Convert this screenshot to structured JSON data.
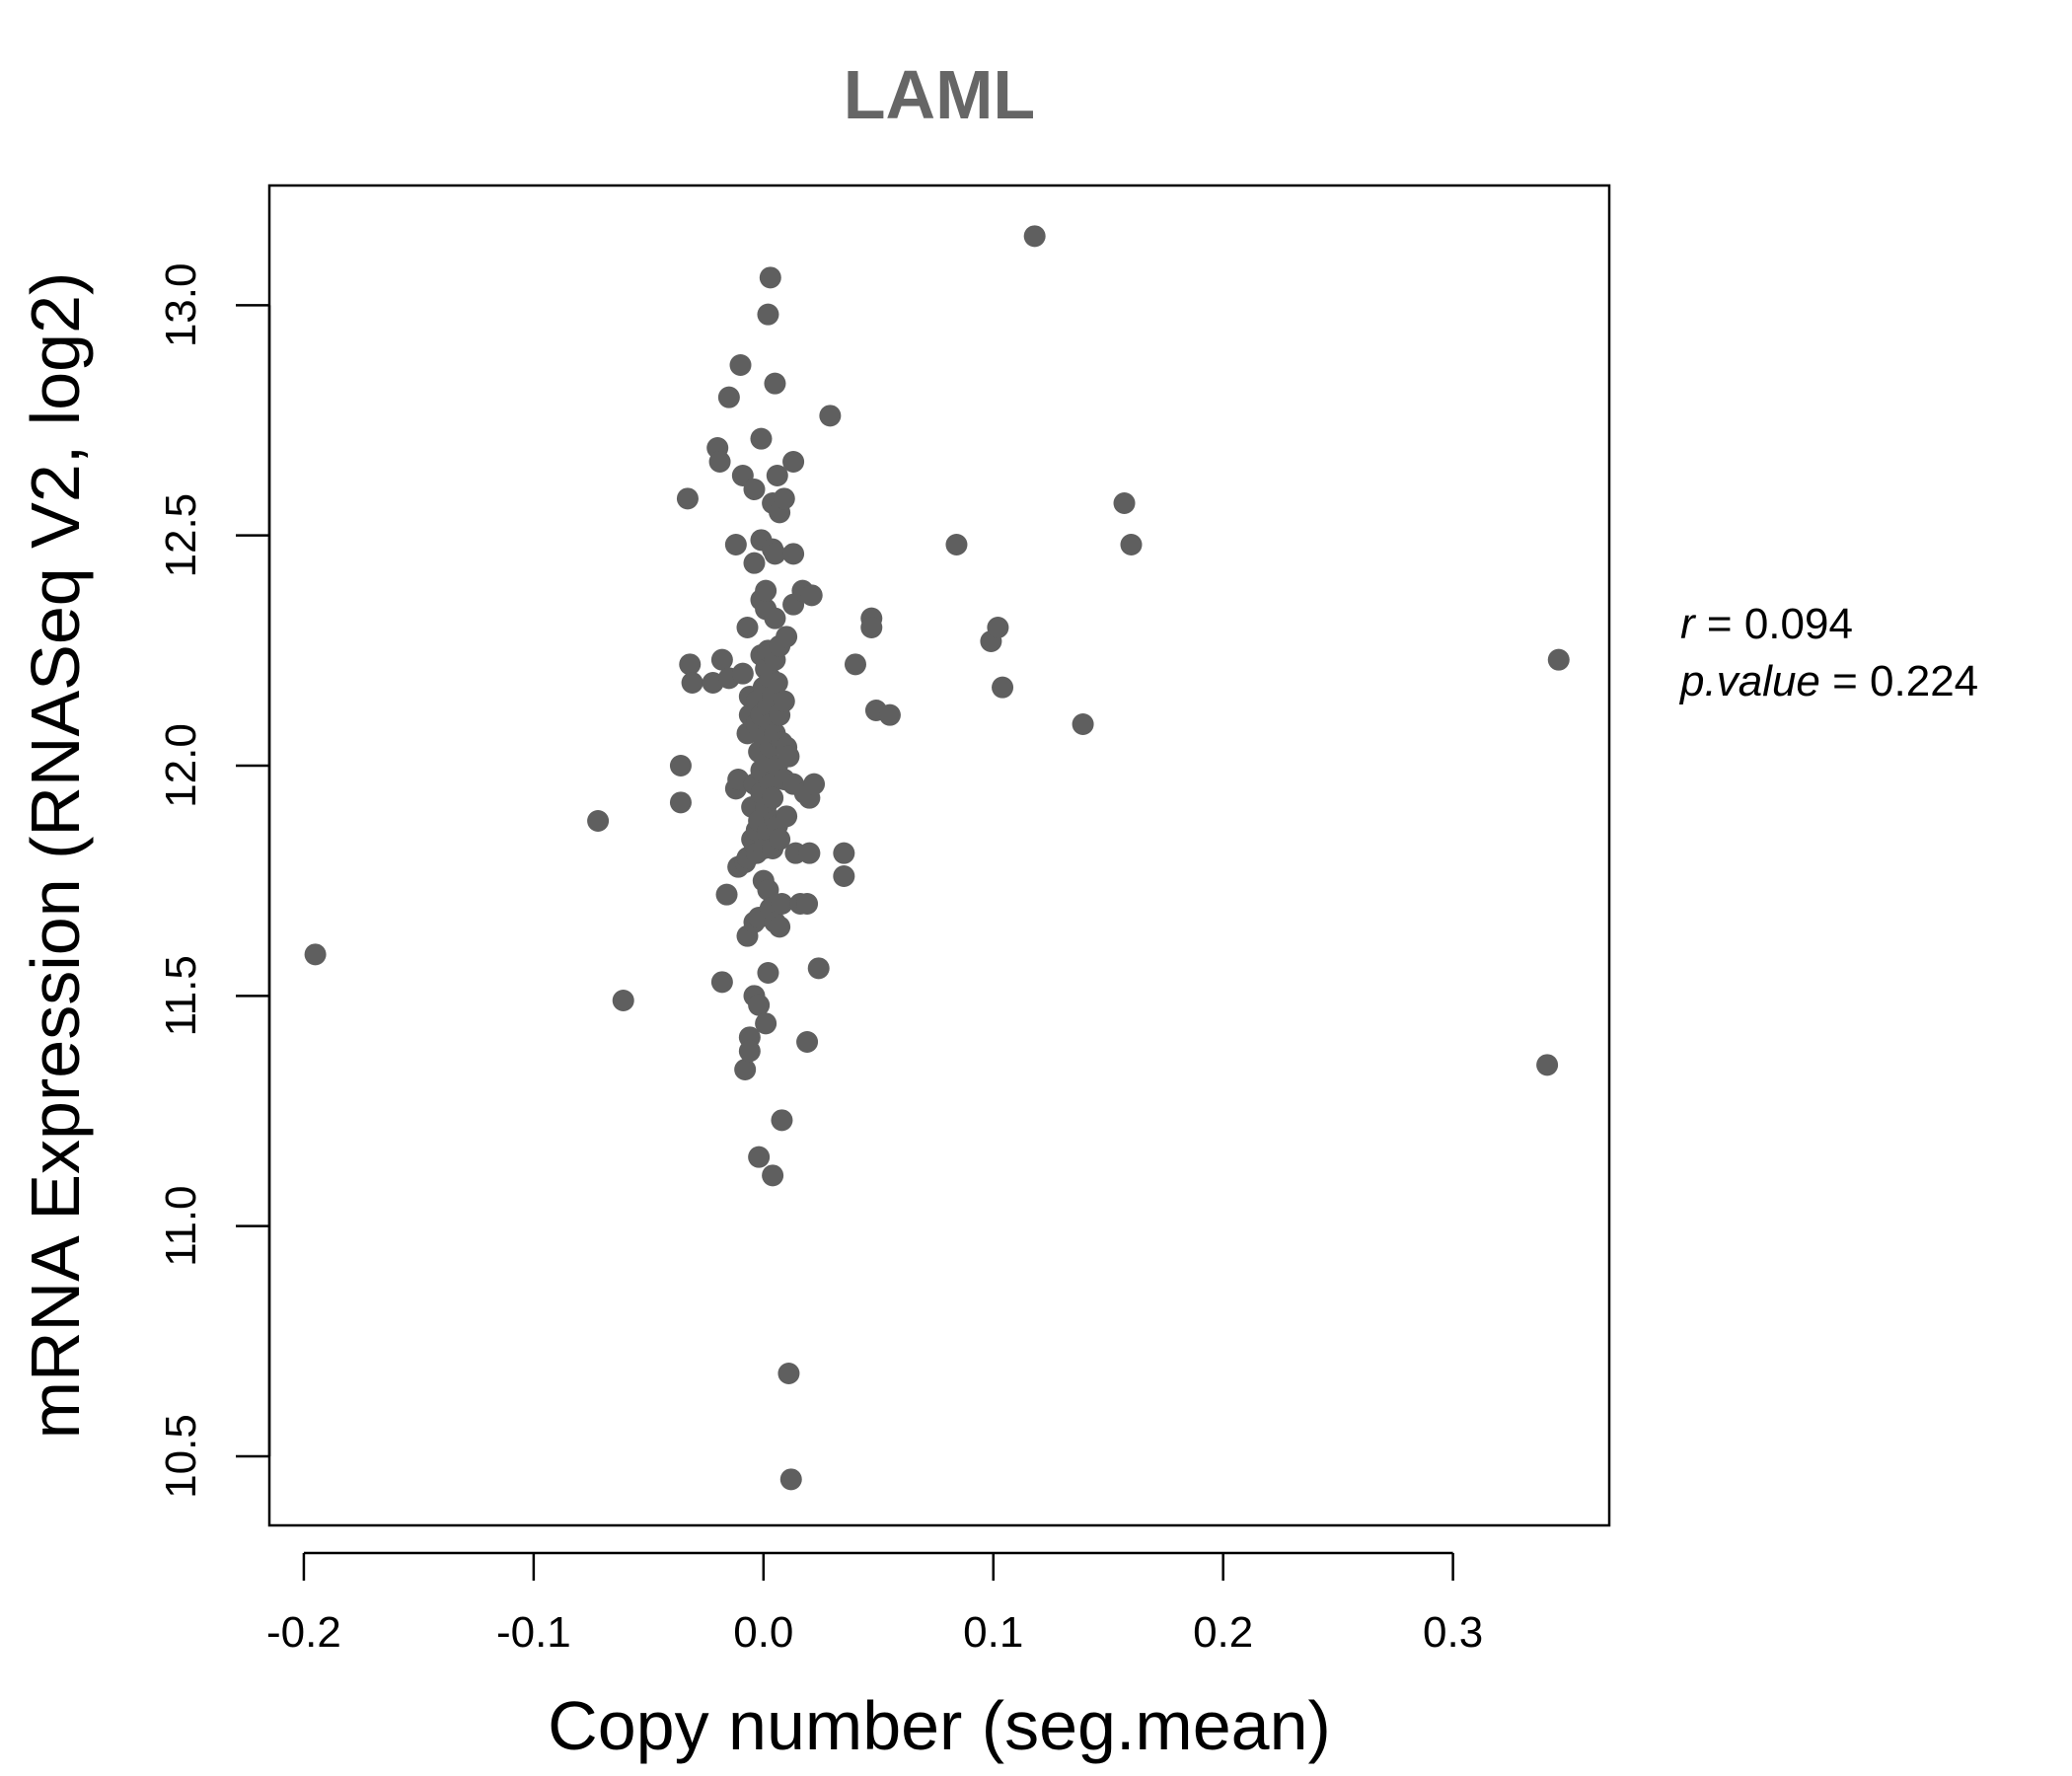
{
  "chart_data": {
    "type": "scatter",
    "title": "LAML",
    "xlabel": "Copy number (seg.mean)",
    "ylabel": "mRNA Expression (RNASeq V2, log2)",
    "xlim": [
      -0.215,
      0.368
    ],
    "ylim": [
      10.35,
      13.26
    ],
    "x_ticks": [
      -0.2,
      -0.1,
      0.0,
      0.1,
      0.2,
      0.3
    ],
    "x_tick_labels": [
      "-0.2",
      "-0.1",
      "0.0",
      "0.1",
      "0.2",
      "0.3"
    ],
    "y_ticks": [
      10.5,
      11.0,
      11.5,
      12.0,
      12.5,
      13.0
    ],
    "y_tick_labels": [
      "10.5",
      "11.0",
      "11.5",
      "12.0",
      "12.5",
      "13.0"
    ],
    "grid": false,
    "point_color": "#5f5f5f",
    "stats": {
      "r_label": "r",
      "r_value": "0.094",
      "p_label": "p.value",
      "p_value": "0.224"
    },
    "points": [
      [
        -0.195,
        11.59
      ],
      [
        -0.072,
        11.88
      ],
      [
        -0.061,
        11.49
      ],
      [
        -0.036,
        12.0
      ],
      [
        -0.036,
        11.92
      ],
      [
        -0.033,
        12.58
      ],
      [
        -0.032,
        12.22
      ],
      [
        -0.031,
        12.18
      ],
      [
        -0.022,
        12.18
      ],
      [
        -0.02,
        12.69
      ],
      [
        -0.019,
        12.66
      ],
      [
        -0.018,
        12.23
      ],
      [
        -0.018,
        11.53
      ],
      [
        -0.016,
        11.72
      ],
      [
        -0.015,
        12.19
      ],
      [
        -0.015,
        12.8
      ],
      [
        -0.012,
        11.95
      ],
      [
        -0.012,
        12.48
      ],
      [
        -0.011,
        11.97
      ],
      [
        -0.011,
        11.78
      ],
      [
        -0.01,
        12.87
      ],
      [
        -0.009,
        12.63
      ],
      [
        -0.009,
        12.2
      ],
      [
        -0.008,
        11.34
      ],
      [
        -0.008,
        11.79
      ],
      [
        -0.007,
        12.07
      ],
      [
        -0.007,
        12.3
      ],
      [
        -0.007,
        11.63
      ],
      [
        -0.007,
        11.8
      ],
      [
        -0.006,
        12.15
      ],
      [
        -0.006,
        12.11
      ],
      [
        -0.006,
        11.41
      ],
      [
        -0.006,
        11.38
      ],
      [
        -0.005,
        11.84
      ],
      [
        -0.005,
        11.91
      ],
      [
        -0.004,
        11.66
      ],
      [
        -0.004,
        11.83
      ],
      [
        -0.004,
        11.5
      ],
      [
        -0.004,
        11.96
      ],
      [
        -0.004,
        12.6
      ],
      [
        -0.004,
        12.44
      ],
      [
        -0.003,
        12.09
      ],
      [
        -0.003,
        11.86
      ],
      [
        -0.003,
        12.14
      ],
      [
        -0.003,
        11.81
      ],
      [
        -0.002,
        11.48
      ],
      [
        -0.002,
        11.15
      ],
      [
        -0.002,
        11.67
      ],
      [
        -0.002,
        12.03
      ],
      [
        -0.002,
        11.88
      ],
      [
        -0.001,
        12.71
      ],
      [
        -0.001,
        12.49
      ],
      [
        -0.001,
        12.36
      ],
      [
        -0.001,
        12.24
      ],
      [
        -0.001,
        12.11
      ],
      [
        -0.001,
        11.94
      ],
      [
        -0.001,
        11.99
      ],
      [
        0.0,
        11.82
      ],
      [
        0.0,
        12.06
      ],
      [
        0.0,
        12.17
      ],
      [
        0.0,
        11.75
      ],
      [
        0.001,
        12.34
      ],
      [
        0.001,
        11.44
      ],
      [
        0.001,
        11.91
      ],
      [
        0.001,
        12.21
      ],
      [
        0.001,
        12.38
      ],
      [
        0.001,
        12.01
      ],
      [
        0.002,
        11.86
      ],
      [
        0.002,
        12.98
      ],
      [
        0.002,
        11.55
      ],
      [
        0.002,
        12.13
      ],
      [
        0.002,
        11.73
      ],
      [
        0.002,
        12.25
      ],
      [
        0.003,
        13.06
      ],
      [
        0.003,
        11.96
      ],
      [
        0.003,
        12.09
      ],
      [
        0.003,
        12.19
      ],
      [
        0.003,
        11.69
      ],
      [
        0.003,
        12.04
      ],
      [
        0.004,
        11.11
      ],
      [
        0.004,
        11.82
      ],
      [
        0.004,
        12.57
      ],
      [
        0.004,
        12.47
      ],
      [
        0.004,
        12.15
      ],
      [
        0.004,
        11.93
      ],
      [
        0.005,
        12.83
      ],
      [
        0.005,
        12.46
      ],
      [
        0.005,
        12.07
      ],
      [
        0.005,
        12.23
      ],
      [
        0.005,
        11.88
      ],
      [
        0.005,
        11.66
      ],
      [
        0.005,
        12.32
      ],
      [
        0.006,
        12.63
      ],
      [
        0.006,
        12.0
      ],
      [
        0.006,
        12.18
      ],
      [
        0.006,
        11.87
      ],
      [
        0.007,
        11.84
      ],
      [
        0.007,
        12.11
      ],
      [
        0.007,
        12.55
      ],
      [
        0.007,
        12.26
      ],
      [
        0.007,
        11.65
      ],
      [
        0.008,
        11.23
      ],
      [
        0.008,
        12.05
      ],
      [
        0.008,
        11.7
      ],
      [
        0.009,
        12.58
      ],
      [
        0.009,
        12.14
      ],
      [
        0.009,
        11.97
      ],
      [
        0.01,
        12.28
      ],
      [
        0.01,
        11.89
      ],
      [
        0.01,
        12.04
      ],
      [
        0.011,
        10.68
      ],
      [
        0.011,
        12.02
      ],
      [
        0.012,
        10.45
      ],
      [
        0.013,
        12.66
      ],
      [
        0.013,
        11.96
      ],
      [
        0.013,
        12.35
      ],
      [
        0.013,
        12.46
      ],
      [
        0.014,
        11.81
      ],
      [
        0.016,
        11.7
      ],
      [
        0.017,
        12.38
      ],
      [
        0.018,
        11.94
      ],
      [
        0.019,
        11.4
      ],
      [
        0.019,
        11.7
      ],
      [
        0.02,
        11.81
      ],
      [
        0.02,
        11.93
      ],
      [
        0.021,
        12.37
      ],
      [
        0.022,
        11.96
      ],
      [
        0.024,
        11.56
      ],
      [
        0.029,
        12.76
      ],
      [
        0.035,
        11.81
      ],
      [
        0.035,
        11.76
      ],
      [
        0.04,
        12.22
      ],
      [
        0.047,
        12.32
      ],
      [
        0.047,
        12.3
      ],
      [
        0.049,
        12.12
      ],
      [
        0.055,
        12.11
      ],
      [
        0.084,
        12.48
      ],
      [
        0.099,
        12.27
      ],
      [
        0.102,
        12.3
      ],
      [
        0.104,
        12.17
      ],
      [
        0.118,
        13.15
      ],
      [
        0.139,
        12.09
      ],
      [
        0.157,
        12.57
      ],
      [
        0.16,
        12.48
      ],
      [
        0.341,
        11.35
      ],
      [
        0.346,
        12.23
      ]
    ]
  }
}
